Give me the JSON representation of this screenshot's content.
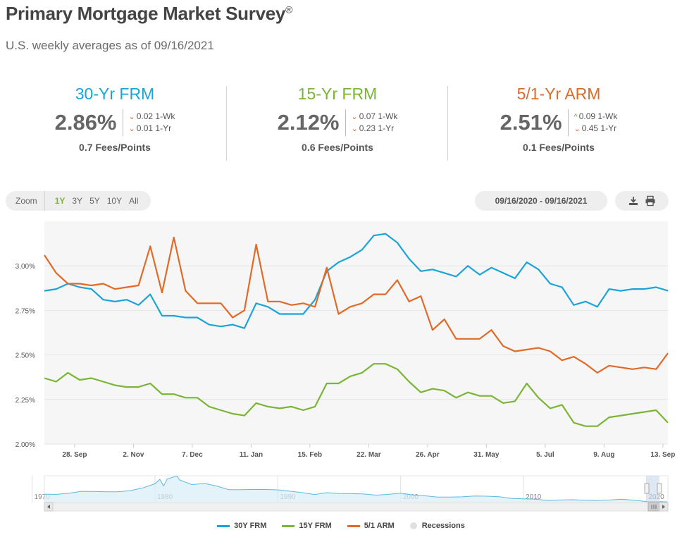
{
  "header": {
    "title": "Primary Mortgage Market Survey",
    "title_mark": "®",
    "subtitle": "U.S. weekly averages as of 09/16/2021"
  },
  "stats": [
    {
      "name": "30-Yr FRM",
      "color": "#1ba4d8",
      "rate": "2.86%",
      "wk_dir": "down",
      "wk": "0.02 1-Wk",
      "yr_dir": "down",
      "yr": "0.01 1-Yr",
      "fees": "0.7 Fees/Points"
    },
    {
      "name": "15-Yr FRM",
      "color": "#7ab535",
      "rate": "2.12%",
      "wk_dir": "down",
      "wk": "0.07 1-Wk",
      "yr_dir": "down",
      "yr": "0.23 1-Yr",
      "fees": "0.6 Fees/Points"
    },
    {
      "name": "5/1-Yr ARM",
      "color": "#e06a27",
      "rate": "2.51%",
      "wk_dir": "up",
      "wk": "0.09 1-Wk",
      "yr_dir": "down",
      "yr": "0.45 1-Yr",
      "fees": "0.1 Fees/Points"
    }
  ],
  "controls": {
    "zoom_label": "Zoom",
    "zoom_options": [
      "1Y",
      "3Y",
      "5Y",
      "10Y",
      "All"
    ],
    "zoom_selected": "1Y",
    "date_range": "09/16/2020 - 09/16/2021"
  },
  "icons": {
    "download": "download-icon",
    "print": "print-icon"
  },
  "chart_data": {
    "type": "line",
    "ylim": [
      2.0,
      3.25
    ],
    "y_ticks": [
      2.0,
      2.25,
      2.5,
      2.75,
      3.0
    ],
    "y_tick_labels": [
      "2.00%",
      "2.25%",
      "2.50%",
      "2.75%",
      "3.00%"
    ],
    "x_start": "2020-09-10",
    "x_end": "2021-09-16",
    "x_ticks": [
      {
        "date": "2020-09-28",
        "label": "28. Sep"
      },
      {
        "date": "2020-11-02",
        "label": "2. Nov"
      },
      {
        "date": "2020-12-07",
        "label": "7. Dec"
      },
      {
        "date": "2021-01-11",
        "label": "11. Jan"
      },
      {
        "date": "2021-02-15",
        "label": "15. Feb"
      },
      {
        "date": "2021-03-22",
        "label": "22. Mar"
      },
      {
        "date": "2021-04-26",
        "label": "26. Apr"
      },
      {
        "date": "2021-05-31",
        "label": "31. May"
      },
      {
        "date": "2021-07-05",
        "label": "5. Jul"
      },
      {
        "date": "2021-08-09",
        "label": "9. Aug"
      },
      {
        "date": "2021-09-13",
        "label": "13. Sep"
      }
    ],
    "dates": [
      "2020-09-10",
      "2020-09-17",
      "2020-09-24",
      "2020-10-01",
      "2020-10-08",
      "2020-10-15",
      "2020-10-22",
      "2020-10-29",
      "2020-11-05",
      "2020-11-12",
      "2020-11-19",
      "2020-11-26",
      "2020-12-03",
      "2020-12-10",
      "2020-12-17",
      "2020-12-24",
      "2020-12-31",
      "2021-01-07",
      "2021-01-14",
      "2021-01-21",
      "2021-01-28",
      "2021-02-04",
      "2021-02-11",
      "2021-02-18",
      "2021-02-25",
      "2021-03-04",
      "2021-03-11",
      "2021-03-18",
      "2021-03-25",
      "2021-04-01",
      "2021-04-08",
      "2021-04-15",
      "2021-04-22",
      "2021-04-29",
      "2021-05-06",
      "2021-05-13",
      "2021-05-20",
      "2021-05-27",
      "2021-06-03",
      "2021-06-10",
      "2021-06-17",
      "2021-06-24",
      "2021-07-01",
      "2021-07-08",
      "2021-07-15",
      "2021-07-22",
      "2021-07-29",
      "2021-08-05",
      "2021-08-12",
      "2021-08-19",
      "2021-08-26",
      "2021-09-02",
      "2021-09-09",
      "2021-09-16"
    ],
    "series": [
      {
        "name": "30Y FRM",
        "color": "#1ba4d8",
        "values": [
          2.86,
          2.87,
          2.9,
          2.88,
          2.87,
          2.81,
          2.8,
          2.81,
          2.78,
          2.84,
          2.72,
          2.72,
          2.71,
          2.71,
          2.67,
          2.66,
          2.67,
          2.65,
          2.79,
          2.77,
          2.73,
          2.73,
          2.73,
          2.81,
          2.97,
          3.02,
          3.05,
          3.09,
          3.17,
          3.18,
          3.13,
          3.04,
          2.97,
          2.98,
          2.96,
          2.94,
          3.0,
          2.95,
          2.99,
          2.96,
          2.93,
          3.02,
          2.98,
          2.9,
          2.88,
          2.78,
          2.8,
          2.77,
          2.87,
          2.86,
          2.87,
          2.87,
          2.88,
          2.86
        ]
      },
      {
        "name": "15Y FRM",
        "color": "#7ab535",
        "values": [
          2.37,
          2.35,
          2.4,
          2.36,
          2.37,
          2.35,
          2.33,
          2.32,
          2.32,
          2.34,
          2.28,
          2.28,
          2.26,
          2.26,
          2.21,
          2.19,
          2.17,
          2.16,
          2.23,
          2.21,
          2.2,
          2.21,
          2.19,
          2.21,
          2.34,
          2.34,
          2.38,
          2.4,
          2.45,
          2.45,
          2.42,
          2.35,
          2.29,
          2.31,
          2.3,
          2.26,
          2.29,
          2.27,
          2.27,
          2.23,
          2.24,
          2.34,
          2.26,
          2.2,
          2.22,
          2.12,
          2.1,
          2.1,
          2.15,
          2.16,
          2.17,
          2.18,
          2.19,
          2.12
        ]
      },
      {
        "name": "5/1 ARM",
        "color": "#e06a27",
        "values": [
          3.06,
          2.96,
          2.9,
          2.9,
          2.89,
          2.9,
          2.87,
          2.88,
          2.89,
          3.11,
          2.85,
          3.16,
          2.86,
          2.79,
          2.79,
          2.79,
          2.71,
          2.75,
          3.12,
          2.8,
          2.8,
          2.78,
          2.79,
          2.77,
          2.99,
          2.73,
          2.77,
          2.79,
          2.84,
          2.84,
          2.92,
          2.8,
          2.83,
          2.64,
          2.7,
          2.59,
          2.59,
          2.59,
          2.64,
          2.55,
          2.52,
          2.53,
          2.54,
          2.52,
          2.47,
          2.49,
          2.45,
          2.4,
          2.44,
          2.43,
          2.42,
          2.43,
          2.42,
          2.51
        ]
      }
    ]
  },
  "navigator": {
    "labels": [
      "1970",
      "1980",
      "1990",
      "2000",
      "2010",
      "2020"
    ],
    "x_start": 1971,
    "x_end": 2021.75,
    "ylim": [
      2.5,
      18.5
    ],
    "x": [
      1971,
      1972,
      1973,
      1974,
      1975,
      1976,
      1977,
      1978,
      1979,
      1980,
      1980.4,
      1980.7,
      1981,
      1981.8,
      1982,
      1983,
      1984,
      1985,
      1986,
      1987,
      1988,
      1989,
      1990,
      1991,
      1992,
      1993,
      1994,
      1995,
      1996,
      1997,
      1998,
      1999,
      2000,
      2001,
      2002,
      2003,
      2004,
      2005,
      2006,
      2007,
      2008,
      2009,
      2010,
      2011,
      2012,
      2013,
      2014,
      2015,
      2016,
      2017,
      2018,
      2019,
      2020,
      2021,
      2021.7
    ],
    "y": [
      7.5,
      7.4,
      8.0,
      9.2,
      9.1,
      8.9,
      8.9,
      9.6,
      11.2,
      13.7,
      16.3,
      12.5,
      16.6,
      18.4,
      16.0,
      13.2,
      13.9,
      12.4,
      10.2,
      10.2,
      10.3,
      10.3,
      10.1,
      9.3,
      8.4,
      7.3,
      8.4,
      7.9,
      7.8,
      7.6,
      6.9,
      7.4,
      8.1,
      7.0,
      6.5,
      5.8,
      5.8,
      5.9,
      6.4,
      6.3,
      6.0,
      5.0,
      4.7,
      4.5,
      3.7,
      4.0,
      4.2,
      3.9,
      3.7,
      4.0,
      4.5,
      3.9,
      3.1,
      3.0,
      2.9
    ]
  },
  "legend": [
    {
      "label": "30Y FRM",
      "color": "#1ba4d8",
      "kind": "line"
    },
    {
      "label": "15Y FRM",
      "color": "#7ab535",
      "kind": "line"
    },
    {
      "label": "5/1 ARM",
      "color": "#e06a27",
      "kind": "line"
    },
    {
      "label": "Recessions",
      "color": "#e0e0e0",
      "kind": "dot"
    }
  ]
}
